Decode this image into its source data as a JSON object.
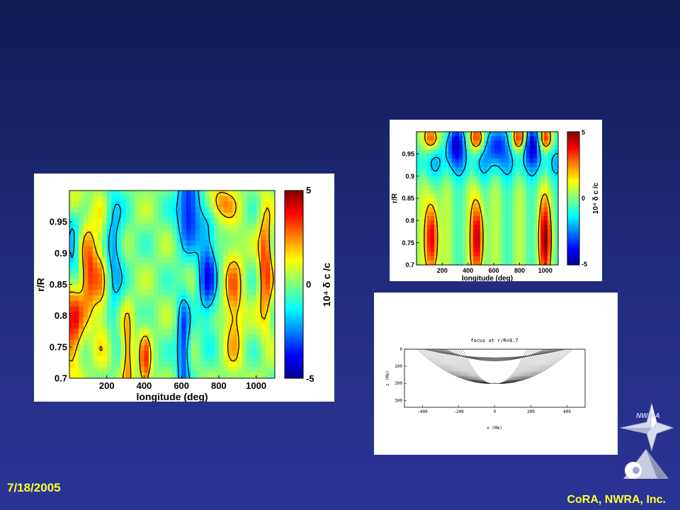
{
  "footer": {
    "date": "7/18/2005",
    "organization": "CoRA, NWRA, Inc."
  },
  "logo": {
    "text": "NW RA",
    "icon": "compass-star-logo"
  },
  "colors": {
    "background_top": "#121a52",
    "background_bottom": "#2b3596",
    "footer_text": "#ffff33"
  },
  "chart_data": [
    {
      "type": "heatmap",
      "colormap": "jet",
      "xlabel": "longitude (deg)",
      "ylabel": "r/R",
      "xticks": [
        "200",
        "400",
        "600",
        "800",
        "1000"
      ],
      "yticks": [
        "0.7",
        "0.75",
        "0.8",
        "0.85",
        "0.9",
        "0.95"
      ],
      "xlim": [
        0,
        1100
      ],
      "ylim": [
        0.7,
        1.0
      ],
      "colorbar": {
        "label": "10⁴ δ c /c",
        "ticks": [
          "5",
          "0",
          "-5"
        ],
        "range": [
          -5,
          5
        ]
      },
      "contours": true
    },
    {
      "type": "heatmap",
      "colormap": "jet",
      "xlabel": "longitude (deg)",
      "ylabel": "r/R",
      "xticks": [
        "200",
        "400",
        "600",
        "800",
        "1000"
      ],
      "yticks": [
        "0.7",
        "0.75",
        "0.8",
        "0.85",
        "0.9",
        "0.95"
      ],
      "xlim": [
        0,
        1100
      ],
      "ylim": [
        0.7,
        1.0
      ],
      "colorbar": {
        "label": "10⁴ δ c /c",
        "ticks": [
          "5",
          "0",
          "-5"
        ],
        "range": [
          -5,
          5
        ]
      },
      "contours": true
    },
    {
      "type": "ray-diagram",
      "title": "focus at r/R=0.7",
      "xlabel": "x (Mm)",
      "ylabel": "z (Mm)",
      "xticks": [
        "-400",
        "-200",
        "0",
        "200",
        "400"
      ],
      "yticks": [
        "0",
        "100",
        "200",
        "300"
      ],
      "xlim": [
        -500,
        500
      ],
      "ylim": [
        0,
        340
      ],
      "focus": {
        "x": 0,
        "z": 200
      }
    }
  ]
}
